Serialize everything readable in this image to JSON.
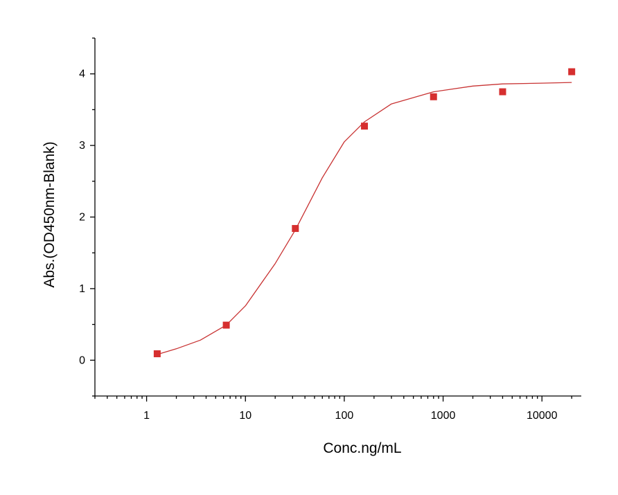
{
  "chart_data": {
    "type": "scatter",
    "title": "",
    "xlabel": "Conc.ng/mL",
    "ylabel": "Abs.(OD450nm-Blank)",
    "x_scale": "log",
    "xlim": [
      0.3,
      25000
    ],
    "ylim": [
      -0.5,
      4.5
    ],
    "x_ticks": [
      1,
      10,
      100,
      1000,
      10000
    ],
    "x_tick_labels": [
      "1",
      "10",
      "100",
      "1000",
      "10000"
    ],
    "y_ticks": [
      0,
      1,
      2,
      3,
      4
    ],
    "y_tick_labels": [
      "0",
      "1",
      "2",
      "3",
      "4"
    ],
    "grid": false,
    "series": [
      {
        "kind": "points",
        "x": [
          1.28,
          6.4,
          32,
          160,
          800,
          4000,
          20000
        ],
        "y": [
          0.09,
          0.49,
          1.84,
          3.27,
          3.68,
          3.75,
          4.03
        ],
        "color": "#d62f2f"
      },
      {
        "kind": "fit",
        "x": [
          1.28,
          2,
          3.5,
          6.4,
          10,
          20,
          32,
          60,
          100,
          160,
          300,
          800,
          2000,
          4000,
          10000,
          20000
        ],
        "y": [
          0.08,
          0.16,
          0.28,
          0.49,
          0.76,
          1.35,
          1.82,
          2.55,
          3.05,
          3.33,
          3.58,
          3.75,
          3.83,
          3.86,
          3.87,
          3.88
        ],
        "color": "#c83232"
      }
    ]
  }
}
